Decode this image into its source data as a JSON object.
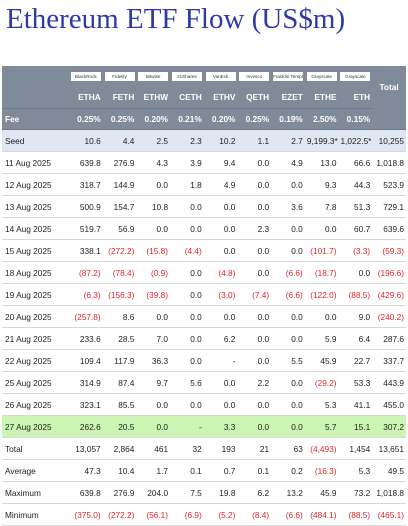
{
  "title": "Ethereum ETF Flow (US$m)",
  "chart_data": {
    "type": "table",
    "columns": [
      {
        "ticker": "ETHA",
        "issuer": "BlackRock",
        "fee": "0.25%"
      },
      {
        "ticker": "FETH",
        "issuer": "Fidelity",
        "fee": "0.25%"
      },
      {
        "ticker": "ETHW",
        "issuer": "Bitwise",
        "fee": "0.20%"
      },
      {
        "ticker": "CETH",
        "issuer": "21Shares",
        "fee": "0.21%"
      },
      {
        "ticker": "ETHV",
        "issuer": "VanEck",
        "fee": "0.20%"
      },
      {
        "ticker": "QETH",
        "issuer": "Invesco",
        "fee": "0.25%"
      },
      {
        "ticker": "EZET",
        "issuer": "Franklin Templeton",
        "fee": "0.19%"
      },
      {
        "ticker": "ETHE",
        "issuer": "Grayscale",
        "fee": "2.50%"
      },
      {
        "ticker": "ETH",
        "issuer": "Grayscale",
        "fee": "0.15%"
      }
    ],
    "total_header": "Total",
    "fee_label": "Fee",
    "rows": [
      {
        "label": "Seed",
        "values": [
          "10.6",
          "4.4",
          "2.5",
          "2.3",
          "10.2",
          "1.1",
          "2.7",
          "9,199.3*",
          "1,022.5*",
          "10,255"
        ],
        "style": "seed"
      },
      {
        "label": "11 Aug 2025",
        "values": [
          "639.8",
          "276.9",
          "4.3",
          "3.9",
          "9.4",
          "0.0",
          "4.9",
          "13.0",
          "66.6",
          "1,018.8"
        ]
      },
      {
        "label": "12 Aug 2025",
        "values": [
          "318.7",
          "144.9",
          "0.0",
          "1.8",
          "4.9",
          "0.0",
          "0.0",
          "9.3",
          "44.3",
          "523.9"
        ]
      },
      {
        "label": "13 Aug 2025",
        "values": [
          "500.9",
          "154.7",
          "10.8",
          "0.0",
          "0.0",
          "0.0",
          "3.6",
          "7.8",
          "51.3",
          "729.1"
        ]
      },
      {
        "label": "14 Aug 2025",
        "values": [
          "519.7",
          "56.9",
          "0.0",
          "0.0",
          "0.0",
          "2.3",
          "0.0",
          "0.0",
          "60.7",
          "639.6"
        ]
      },
      {
        "label": "15 Aug 2025",
        "values": [
          "338.1",
          "(272.2)",
          "(15.8)",
          "(4.4)",
          "0.0",
          "0.0",
          "0.0",
          "(101.7)",
          "(3.3)",
          "(59.3)"
        ]
      },
      {
        "label": "18 Aug 2025",
        "values": [
          "(87.2)",
          "(78.4)",
          "(0.9)",
          "0.0",
          "(4.8)",
          "0.0",
          "(6.6)",
          "(18.7)",
          "0.0",
          "(196.6)"
        ]
      },
      {
        "label": "19 Aug 2025",
        "values": [
          "(6.3)",
          "(156.3)",
          "(39.8)",
          "0.0",
          "(3.0)",
          "(7.4)",
          "(6.6)",
          "(122.0)",
          "(88.5)",
          "(429.6)"
        ]
      },
      {
        "label": "20 Aug 2025",
        "values": [
          "(257.8)",
          "8.6",
          "0.0",
          "0.0",
          "0.0",
          "0.0",
          "0.0",
          "0.0",
          "9.0",
          "(240.2)"
        ]
      },
      {
        "label": "21 Aug 2025",
        "values": [
          "233.6",
          "28.5",
          "7.0",
          "0.0",
          "6.2",
          "0.0",
          "0.0",
          "5.9",
          "6.4",
          "287.6"
        ]
      },
      {
        "label": "22 Aug 2025",
        "values": [
          "109.4",
          "117.9",
          "36.3",
          "0.0",
          "-",
          "0.0",
          "5.5",
          "45.9",
          "22.7",
          "337.7"
        ]
      },
      {
        "label": "25 Aug 2025",
        "values": [
          "314.9",
          "87.4",
          "9.7",
          "5.6",
          "0.0",
          "2.2",
          "0.0",
          "(29.2)",
          "53.3",
          "443.9"
        ]
      },
      {
        "label": "26 Aug 2025",
        "values": [
          "323.1",
          "85.5",
          "0.0",
          "0.0",
          "0.0",
          "0.0",
          "0.0",
          "5.3",
          "41.1",
          "455.0"
        ]
      },
      {
        "label": "27 Aug 2025",
        "values": [
          "262.6",
          "20.5",
          "0.0",
          "-",
          "3.3",
          "0.0",
          "0.0",
          "5.7",
          "15.1",
          "307.2"
        ],
        "style": "hl"
      },
      {
        "label": "Total",
        "values": [
          "13,057",
          "2,864",
          "461",
          "32",
          "193",
          "21",
          "63",
          "(4,493)",
          "1,454",
          "13,651"
        ],
        "style": "sum"
      },
      {
        "label": "Average",
        "values": [
          "47.3",
          "10.4",
          "1.7",
          "0.1",
          "0.7",
          "0.1",
          "0.2",
          "(16.3)",
          "5.3",
          "49.5"
        ],
        "style": "sum"
      },
      {
        "label": "Maximum",
        "values": [
          "639.8",
          "276.9",
          "204.0",
          "7.5",
          "19.8",
          "6.2",
          "13.2",
          "45.9",
          "73.2",
          "1,018.8"
        ],
        "style": "sum"
      },
      {
        "label": "Minimum",
        "values": [
          "(375.0)",
          "(272.2)",
          "(56.1)",
          "(6.9)",
          "(5.2)",
          "(8.4)",
          "(6.6)",
          "(484.1)",
          "(88.5)",
          "(465.1)"
        ],
        "style": "sum"
      }
    ]
  }
}
